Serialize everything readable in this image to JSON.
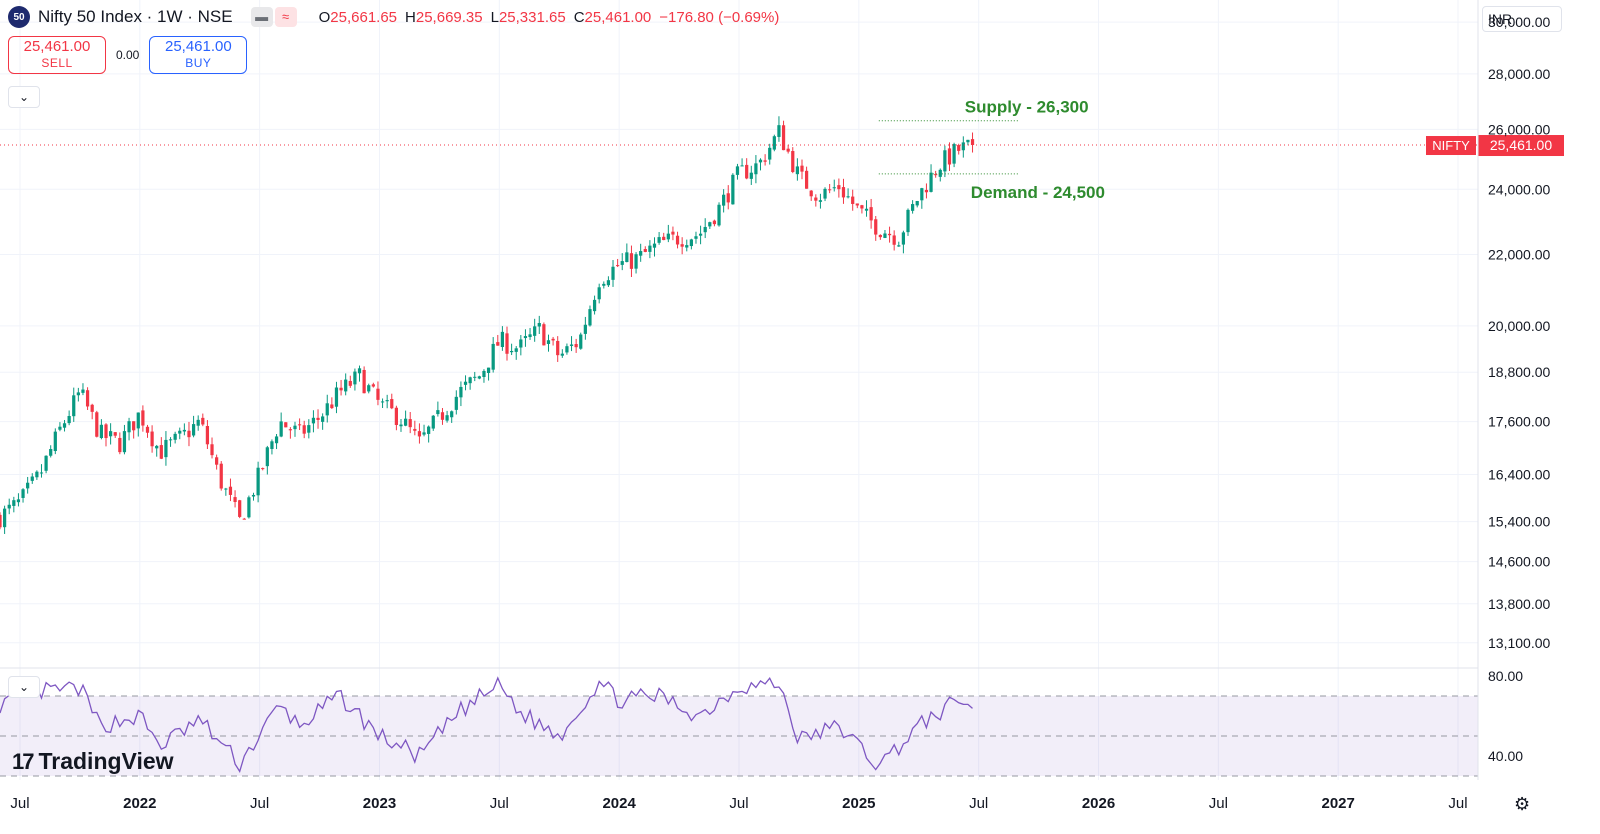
{
  "header": {
    "symbol_badge": "50",
    "title": "Nifty 50 Index · 1W · NSE",
    "ohlc": [
      {
        "label": "O",
        "value": "25,661.65"
      },
      {
        "label": "H",
        "value": "25,669.35"
      },
      {
        "label": "L",
        "value": "25,331.65"
      },
      {
        "label": "C",
        "value": "25,461.00"
      }
    ],
    "change": "−176.80 (−0.69%)"
  },
  "trade": {
    "sell_price": "25,461.00",
    "sell_label": "SELL",
    "spread": "0.00",
    "buy_price": "25,461.00",
    "buy_label": "BUY"
  },
  "currency": "INR",
  "logo_text": "TradingView",
  "colors": {
    "up": "#089981",
    "down": "#f23645",
    "annotation": "#2e8b2e",
    "rsi_line": "#7e57c2",
    "rsi_band": "#7e57c2"
  },
  "chart_data": [
    {
      "type": "candlestick",
      "symbol_label": "NIFTY",
      "last_price": 25461.0,
      "last_price_label": "25,461.00",
      "y_scale": "log",
      "ylim": [
        12700,
        30900
      ],
      "y_ticks": [
        {
          "value": 30000,
          "label": "30,000.00"
        },
        {
          "value": 28000,
          "label": "28,000.00"
        },
        {
          "value": 26000,
          "label": "26,000.00"
        },
        {
          "value": 24000,
          "label": "24,000.00"
        },
        {
          "value": 22000,
          "label": "22,000.00"
        },
        {
          "value": 20000,
          "label": "20,000.00"
        },
        {
          "value": 18800,
          "label": "18,800.00"
        },
        {
          "value": 17600,
          "label": "17,600.00"
        },
        {
          "value": 16400,
          "label": "16,400.00"
        },
        {
          "value": 15400,
          "label": "15,400.00"
        },
        {
          "value": 14600,
          "label": "14,600.00"
        },
        {
          "value": 13800,
          "label": "13,800.00"
        },
        {
          "value": 13100,
          "label": "13,100.00"
        }
      ],
      "x_ticks": [
        {
          "date": "2021-07",
          "label": "Jul",
          "bold": false
        },
        {
          "date": "2022-01",
          "label": "2022",
          "bold": true
        },
        {
          "date": "2022-07",
          "label": "Jul",
          "bold": false
        },
        {
          "date": "2023-01",
          "label": "2023",
          "bold": true
        },
        {
          "date": "2023-07",
          "label": "Jul",
          "bold": false
        },
        {
          "date": "2024-01",
          "label": "2024",
          "bold": true
        },
        {
          "date": "2024-07",
          "label": "Jul",
          "bold": false
        },
        {
          "date": "2025-01",
          "label": "2025",
          "bold": true
        },
        {
          "date": "2025-07",
          "label": "Jul",
          "bold": false
        },
        {
          "date": "2026-01",
          "label": "2026",
          "bold": true
        },
        {
          "date": "2026-07",
          "label": "Jul",
          "bold": false
        },
        {
          "date": "2027-01",
          "label": "2027",
          "bold": true
        },
        {
          "date": "2027-07",
          "label": "Jul",
          "bold": false
        }
      ],
      "x_range": [
        "2021-06",
        "2027-08"
      ],
      "weekly_close_path": [
        [
          "2021-06",
          15500
        ],
        [
          "2021-07",
          15800
        ],
        [
          "2021-08",
          16400
        ],
        [
          "2021-09",
          17400
        ],
        [
          "2021-10",
          18300
        ],
        [
          "2021-11",
          17300
        ],
        [
          "2021-12",
          17100
        ],
        [
          "2022-01",
          17800
        ],
        [
          "2022-02",
          16900
        ],
        [
          "2022-03",
          17200
        ],
        [
          "2022-04",
          17600
        ],
        [
          "2022-05",
          16300
        ],
        [
          "2022-06",
          15400
        ],
        [
          "2022-07",
          16400
        ],
        [
          "2022-08",
          17600
        ],
        [
          "2022-09",
          17300
        ],
        [
          "2022-10",
          17700
        ],
        [
          "2022-11",
          18300
        ],
        [
          "2022-12",
          18700
        ],
        [
          "2023-01",
          18000
        ],
        [
          "2023-02",
          17700
        ],
        [
          "2023-03",
          17100
        ],
        [
          "2023-04",
          17700
        ],
        [
          "2023-05",
          18300
        ],
        [
          "2023-06",
          18700
        ],
        [
          "2023-07",
          19600
        ],
        [
          "2023-08",
          19400
        ],
        [
          "2023-09",
          19900
        ],
        [
          "2023-10",
          19200
        ],
        [
          "2023-11",
          19600
        ],
        [
          "2023-12",
          21300
        ],
        [
          "2024-01",
          21700
        ],
        [
          "2024-02",
          21900
        ],
        [
          "2024-03",
          22300
        ],
        [
          "2024-04",
          22500
        ],
        [
          "2024-05",
          22600
        ],
        [
          "2024-06",
          23400
        ],
        [
          "2024-07",
          24500
        ],
        [
          "2024-08",
          24800
        ],
        [
          "2024-09",
          25900
        ],
        [
          "2024-10",
          24400
        ],
        [
          "2024-11",
          23800
        ],
        [
          "2024-12",
          24100
        ],
        [
          "2025-01",
          23300
        ],
        [
          "2025-02",
          22800
        ],
        [
          "2025-03",
          22500
        ],
        [
          "2025-04",
          23800
        ],
        [
          "2025-05",
          24800
        ],
        [
          "2025-06",
          25300
        ],
        [
          "2025-06-27",
          25461
        ]
      ],
      "annotations": [
        {
          "text": "Supply - 26,300",
          "value": 26300,
          "position": "above-line"
        },
        {
          "text": "Demand - 24,500",
          "value": 24500,
          "position": "below-line"
        }
      ]
    },
    {
      "type": "line",
      "indicator": "RSI",
      "ylim": [
        28,
        84
      ],
      "y_ticks": [
        {
          "value": 80,
          "label": "80.00"
        },
        {
          "value": 40,
          "label": "40.00"
        }
      ],
      "band": [
        30,
        70
      ],
      "midline": 50,
      "series_path": [
        [
          "2021-06",
          66
        ],
        [
          "2021-08",
          72
        ],
        [
          "2021-10",
          74
        ],
        [
          "2021-11",
          55
        ],
        [
          "2022-01",
          60
        ],
        [
          "2022-02",
          45
        ],
        [
          "2022-04",
          58
        ],
        [
          "2022-06",
          36
        ],
        [
          "2022-08",
          65
        ],
        [
          "2022-09",
          55
        ],
        [
          "2022-11",
          70
        ],
        [
          "2023-01",
          50
        ],
        [
          "2023-03",
          40
        ],
        [
          "2023-05",
          62
        ],
        [
          "2023-07",
          76
        ],
        [
          "2023-08",
          62
        ],
        [
          "2023-10",
          50
        ],
        [
          "2023-12",
          77
        ],
        [
          "2024-01",
          68
        ],
        [
          "2024-03",
          70
        ],
        [
          "2024-05",
          60
        ],
        [
          "2024-07",
          75
        ],
        [
          "2024-09",
          76
        ],
        [
          "2024-10",
          48
        ],
        [
          "2024-12",
          55
        ],
        [
          "2025-02",
          35
        ],
        [
          "2025-04",
          55
        ],
        [
          "2025-06",
          68
        ],
        [
          "2025-06-27",
          64
        ]
      ]
    }
  ]
}
